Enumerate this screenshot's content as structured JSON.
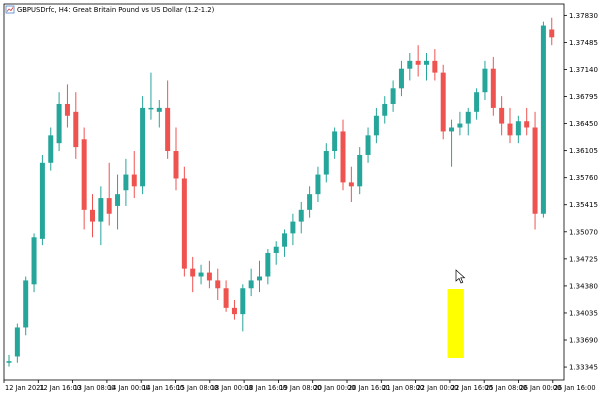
{
  "window": {
    "title": "GBPUSDrfc, H4: Great Britain Pound vs US Dollar (1.2-1.2)",
    "icon": "chart-window-icon"
  },
  "chart_data": {
    "type": "candlestick",
    "timeframe": "H4",
    "up_color": "#26a69a",
    "down_color": "#ef5350",
    "highlight_color": "#ffff00",
    "highlight_candle_indices": [
      53,
      54
    ],
    "y_ticks": [
      "1.37830",
      "1.37485",
      "1.37140",
      "1.36795",
      "1.36450",
      "1.36105",
      "1.35760",
      "1.35415",
      "1.35070",
      "1.34725",
      "1.34380",
      "1.34035",
      "1.33690",
      "1.33345"
    ],
    "ylim": [
      1.3318,
      1.37975
    ],
    "x_labels": [
      "12 Jan 2021",
      "12 Jan 16:00",
      "13 Jan 08:00",
      "14 Jan 00:00",
      "14 Jan 16:00",
      "15 Jan 08:00",
      "18 Jan 00:00",
      "18 Jan 16:00",
      "19 Jan 08:00",
      "20 Jan 00:00",
      "20 Jan 16:00",
      "21 Jan 08:00",
      "22 Jan 00:00",
      "22 Jan 16:00",
      "25 Jan 08:00",
      "26 Jan 00:00",
      "26 Jan 16:00"
    ],
    "candles": [
      {
        "o": 1.334,
        "h": 1.335,
        "l": 1.3335,
        "c": 1.3342
      },
      {
        "o": 1.3348,
        "h": 1.339,
        "l": 1.334,
        "c": 1.3385
      },
      {
        "o": 1.3385,
        "h": 1.345,
        "l": 1.3375,
        "c": 1.3445
      },
      {
        "o": 1.344,
        "h": 1.3505,
        "l": 1.343,
        "c": 1.35
      },
      {
        "o": 1.3498,
        "h": 1.3605,
        "l": 1.349,
        "c": 1.3595
      },
      {
        "o": 1.3595,
        "h": 1.364,
        "l": 1.3585,
        "c": 1.363
      },
      {
        "o": 1.362,
        "h": 1.3685,
        "l": 1.361,
        "c": 1.367
      },
      {
        "o": 1.367,
        "h": 1.3695,
        "l": 1.364,
        "c": 1.3655
      },
      {
        "o": 1.366,
        "h": 1.3685,
        "l": 1.36,
        "c": 1.3615
      },
      {
        "o": 1.3625,
        "h": 1.364,
        "l": 1.351,
        "c": 1.3535
      },
      {
        "o": 1.3535,
        "h": 1.3555,
        "l": 1.35,
        "c": 1.352
      },
      {
        "o": 1.352,
        "h": 1.3565,
        "l": 1.349,
        "c": 1.355
      },
      {
        "o": 1.355,
        "h": 1.3595,
        "l": 1.3515,
        "c": 1.353
      },
      {
        "o": 1.354,
        "h": 1.358,
        "l": 1.351,
        "c": 1.3555
      },
      {
        "o": 1.356,
        "h": 1.36,
        "l": 1.354,
        "c": 1.358
      },
      {
        "o": 1.358,
        "h": 1.361,
        "l": 1.355,
        "c": 1.3565
      },
      {
        "o": 1.3565,
        "h": 1.368,
        "l": 1.3555,
        "c": 1.3665
      },
      {
        "o": 1.3665,
        "h": 1.371,
        "l": 1.365,
        "c": 1.3665
      },
      {
        "o": 1.366,
        "h": 1.3675,
        "l": 1.364,
        "c": 1.3665
      },
      {
        "o": 1.3665,
        "h": 1.37,
        "l": 1.36,
        "c": 1.361
      },
      {
        "o": 1.361,
        "h": 1.364,
        "l": 1.356,
        "c": 1.3575
      },
      {
        "o": 1.3575,
        "h": 1.359,
        "l": 1.345,
        "c": 1.346
      },
      {
        "o": 1.346,
        "h": 1.3475,
        "l": 1.343,
        "c": 1.345
      },
      {
        "o": 1.345,
        "h": 1.3465,
        "l": 1.344,
        "c": 1.3455
      },
      {
        "o": 1.3455,
        "h": 1.347,
        "l": 1.3435,
        "c": 1.3445
      },
      {
        "o": 1.3445,
        "h": 1.346,
        "l": 1.342,
        "c": 1.3435
      },
      {
        "o": 1.3435,
        "h": 1.3445,
        "l": 1.3405,
        "c": 1.341
      },
      {
        "o": 1.341,
        "h": 1.342,
        "l": 1.3395,
        "c": 1.3402
      },
      {
        "o": 1.3402,
        "h": 1.344,
        "l": 1.338,
        "c": 1.3435
      },
      {
        "o": 1.3435,
        "h": 1.346,
        "l": 1.3425,
        "c": 1.3445
      },
      {
        "o": 1.3445,
        "h": 1.347,
        "l": 1.343,
        "c": 1.345
      },
      {
        "o": 1.345,
        "h": 1.3485,
        "l": 1.344,
        "c": 1.348
      },
      {
        "o": 1.348,
        "h": 1.3495,
        "l": 1.3465,
        "c": 1.3488
      },
      {
        "o": 1.3488,
        "h": 1.351,
        "l": 1.3475,
        "c": 1.3505
      },
      {
        "o": 1.3505,
        "h": 1.353,
        "l": 1.349,
        "c": 1.352
      },
      {
        "o": 1.352,
        "h": 1.3545,
        "l": 1.3505,
        "c": 1.3535
      },
      {
        "o": 1.3535,
        "h": 1.3565,
        "l": 1.3525,
        "c": 1.3555
      },
      {
        "o": 1.3555,
        "h": 1.359,
        "l": 1.3545,
        "c": 1.358
      },
      {
        "o": 1.358,
        "h": 1.362,
        "l": 1.357,
        "c": 1.361
      },
      {
        "o": 1.361,
        "h": 1.364,
        "l": 1.36,
        "c": 1.3635
      },
      {
        "o": 1.3635,
        "h": 1.365,
        "l": 1.356,
        "c": 1.357
      },
      {
        "o": 1.357,
        "h": 1.359,
        "l": 1.3545,
        "c": 1.3565
      },
      {
        "o": 1.3565,
        "h": 1.3615,
        "l": 1.3555,
        "c": 1.3605
      },
      {
        "o": 1.3605,
        "h": 1.364,
        "l": 1.3595,
        "c": 1.363
      },
      {
        "o": 1.363,
        "h": 1.3665,
        "l": 1.362,
        "c": 1.3655
      },
      {
        "o": 1.3655,
        "h": 1.368,
        "l": 1.3645,
        "c": 1.367
      },
      {
        "o": 1.367,
        "h": 1.37,
        "l": 1.366,
        "c": 1.369
      },
      {
        "o": 1.369,
        "h": 1.3725,
        "l": 1.368,
        "c": 1.3715
      },
      {
        "o": 1.3715,
        "h": 1.3735,
        "l": 1.37,
        "c": 1.3725
      },
      {
        "o": 1.3725,
        "h": 1.3745,
        "l": 1.3705,
        "c": 1.372
      },
      {
        "o": 1.372,
        "h": 1.3735,
        "l": 1.37,
        "c": 1.3725
      },
      {
        "o": 1.3725,
        "h": 1.374,
        "l": 1.37,
        "c": 1.371
      },
      {
        "o": 1.371,
        "h": 1.372,
        "l": 1.3625,
        "c": 1.3635
      },
      {
        "o": 1.3635,
        "h": 1.365,
        "l": 1.359,
        "c": 1.364
      },
      {
        "o": 1.364,
        "h": 1.366,
        "l": 1.363,
        "c": 1.3645
      },
      {
        "o": 1.3645,
        "h": 1.3665,
        "l": 1.363,
        "c": 1.366
      },
      {
        "o": 1.366,
        "h": 1.369,
        "l": 1.365,
        "c": 1.3685
      },
      {
        "o": 1.3685,
        "h": 1.3725,
        "l": 1.3675,
        "c": 1.3715
      },
      {
        "o": 1.3715,
        "h": 1.373,
        "l": 1.3655,
        "c": 1.3665
      },
      {
        "o": 1.3665,
        "h": 1.368,
        "l": 1.363,
        "c": 1.3645
      },
      {
        "o": 1.3645,
        "h": 1.3665,
        "l": 1.362,
        "c": 1.363
      },
      {
        "o": 1.363,
        "h": 1.3655,
        "l": 1.362,
        "c": 1.3648
      },
      {
        "o": 1.3648,
        "h": 1.3665,
        "l": 1.363,
        "c": 1.364
      },
      {
        "o": 1.364,
        "h": 1.366,
        "l": 1.351,
        "c": 1.353
      },
      {
        "o": 1.353,
        "h": 1.3775,
        "l": 1.3525,
        "c": 1.377
      },
      {
        "o": 1.3765,
        "h": 1.378,
        "l": 1.3745,
        "c": 1.3755
      }
    ]
  }
}
